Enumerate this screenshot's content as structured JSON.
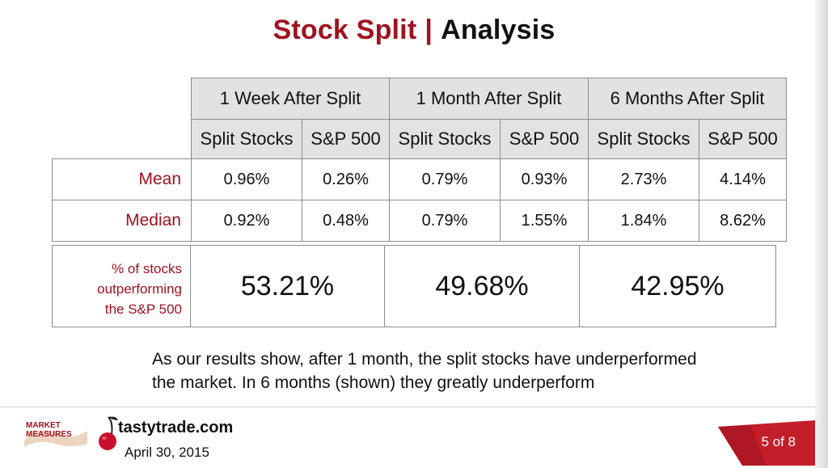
{
  "title": {
    "part1": "Stock Split",
    "separator": "|",
    "part2": "Analysis"
  },
  "table": {
    "periods": [
      "1 Week After Split",
      "1 Month After Split",
      "6 Months After Split"
    ],
    "subheaders": [
      "Split Stocks",
      "S&P 500",
      "Split Stocks",
      "S&P 500",
      "Split Stocks",
      "S&P 500"
    ],
    "rows": [
      {
        "label": "Mean",
        "values": [
          "0.96%",
          "0.26%",
          "0.79%",
          "0.93%",
          "2.73%",
          "4.14%"
        ]
      },
      {
        "label": "Median",
        "values": [
          "0.92%",
          "0.48%",
          "0.79%",
          "1.55%",
          "1.84%",
          "8.62%"
        ]
      }
    ],
    "outperforming": {
      "label_lines": [
        "% of stocks",
        "outperforming",
        "the S&P 500"
      ],
      "values": [
        "53.21%",
        "49.68%",
        "42.95%"
      ]
    }
  },
  "note": {
    "line1": "As our results show, after 1 month, the split stocks have underperformed",
    "line2": "the market. In 6 months (shown) they greatly underperform"
  },
  "footer": {
    "logo_text": "MARKET MEASURES",
    "brand": "tastytrade.com",
    "date": "April 30, 2015",
    "page": "5 of 8",
    "accent_color": "#a0121f"
  }
}
